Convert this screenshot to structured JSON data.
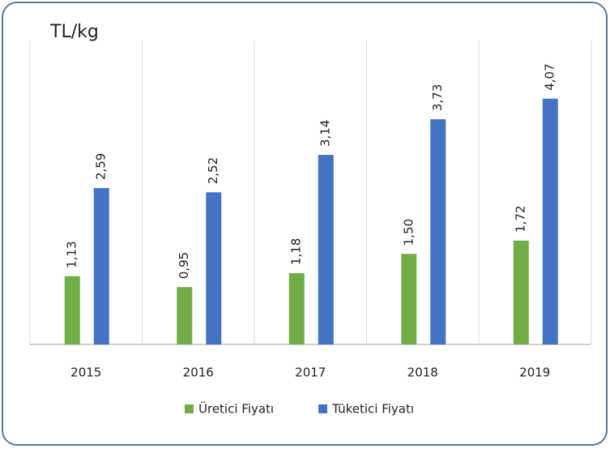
{
  "chart_data": {
    "type": "bar",
    "y_label": "TL/kg",
    "categories": [
      "2015",
      "2016",
      "2017",
      "2018",
      "2019"
    ],
    "series": [
      {
        "name": "Üretici Fiyatı",
        "color": "#70ad47",
        "values": [
          1.13,
          0.95,
          1.18,
          1.5,
          1.72
        ],
        "value_labels": [
          "1,13",
          "0,95",
          "1,18",
          "1,50",
          "1,72"
        ]
      },
      {
        "name": "Tüketici Fiyatı",
        "color": "#4472c4",
        "values": [
          2.59,
          2.52,
          3.14,
          3.73,
          4.07
        ],
        "value_labels": [
          "2,59",
          "2,52",
          "3,14",
          "3,73",
          "4,07"
        ]
      }
    ],
    "legend": "bottom"
  }
}
